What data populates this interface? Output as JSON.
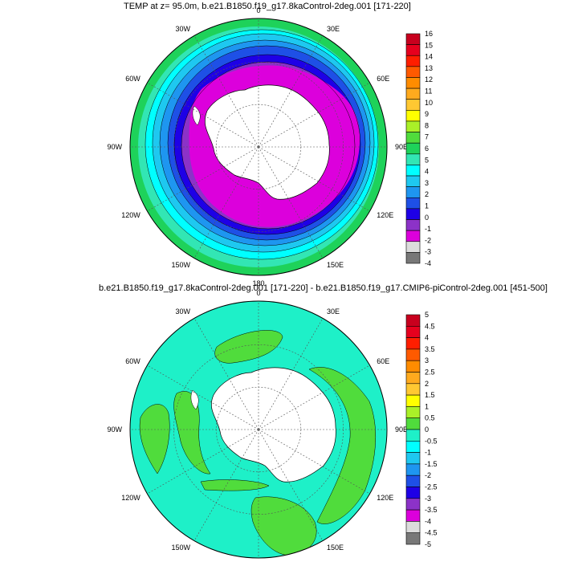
{
  "panels": [
    {
      "title": "TEMP at z=  95.0m, b.e21.B1850.f19_g17.8kaControl-2deg.001 [171-220]",
      "lon_labels": [
        "0",
        "30E",
        "60E",
        "90E",
        "120E",
        "150E",
        "180",
        "150W",
        "120W",
        "90W",
        "60W",
        "30W"
      ],
      "colorbar": {
        "labels": [
          "16",
          "15",
          "14",
          "13",
          "12",
          "11",
          "10",
          "9",
          "8",
          "7",
          "6",
          "5",
          "4",
          "3",
          "2",
          "1",
          "0",
          "-1",
          "-2",
          "-3",
          "-4"
        ],
        "colors": [
          "#c8001e",
          "#e6001e",
          "#ff1e00",
          "#ff5a00",
          "#ff8c00",
          "#ffaa1e",
          "#ffc832",
          "#ffff00",
          "#aaf028",
          "#50dc3c",
          "#1ed25a",
          "#32e6b4",
          "#00ffff",
          "#1ec8f0",
          "#1e96f0",
          "#1e50e6",
          "#1e00e6",
          "#8c32c8",
          "#dc00dc",
          "#dcdcdc",
          "#787878"
        ]
      }
    },
    {
      "title": "b.e21.B1850.f19_g17.8kaControl-2deg.001 [171-220] - b.e21.B1850.f19_g17.CMIP6-piControl-2deg.001 [451-500]",
      "lon_labels": [
        "0",
        "30E",
        "60E",
        "90E",
        "120E",
        "150E",
        "180",
        "150W",
        "120W",
        "90W",
        "60W",
        "30W"
      ],
      "colorbar": {
        "labels": [
          "5",
          "4.5",
          "4",
          "3.5",
          "3",
          "2.5",
          "2",
          "1.5",
          "1",
          "0.5",
          "0",
          "-0.5",
          "-1",
          "-1.5",
          "-2",
          "-2.5",
          "-3",
          "-3.5",
          "-4",
          "-4.5",
          "-5"
        ],
        "colors": [
          "#c8001e",
          "#e6001e",
          "#ff1e00",
          "#ff5a00",
          "#ff8c00",
          "#ffaa1e",
          "#ffc832",
          "#ffff00",
          "#aaf028",
          "#50dc3c",
          "#1ef0c8",
          "#00ffff",
          "#1ec8f0",
          "#1e96f0",
          "#1e50e6",
          "#1e00e6",
          "#8c32c8",
          "#dc00dc",
          "#dcdcdc",
          "#787878"
        ]
      }
    }
  ]
}
